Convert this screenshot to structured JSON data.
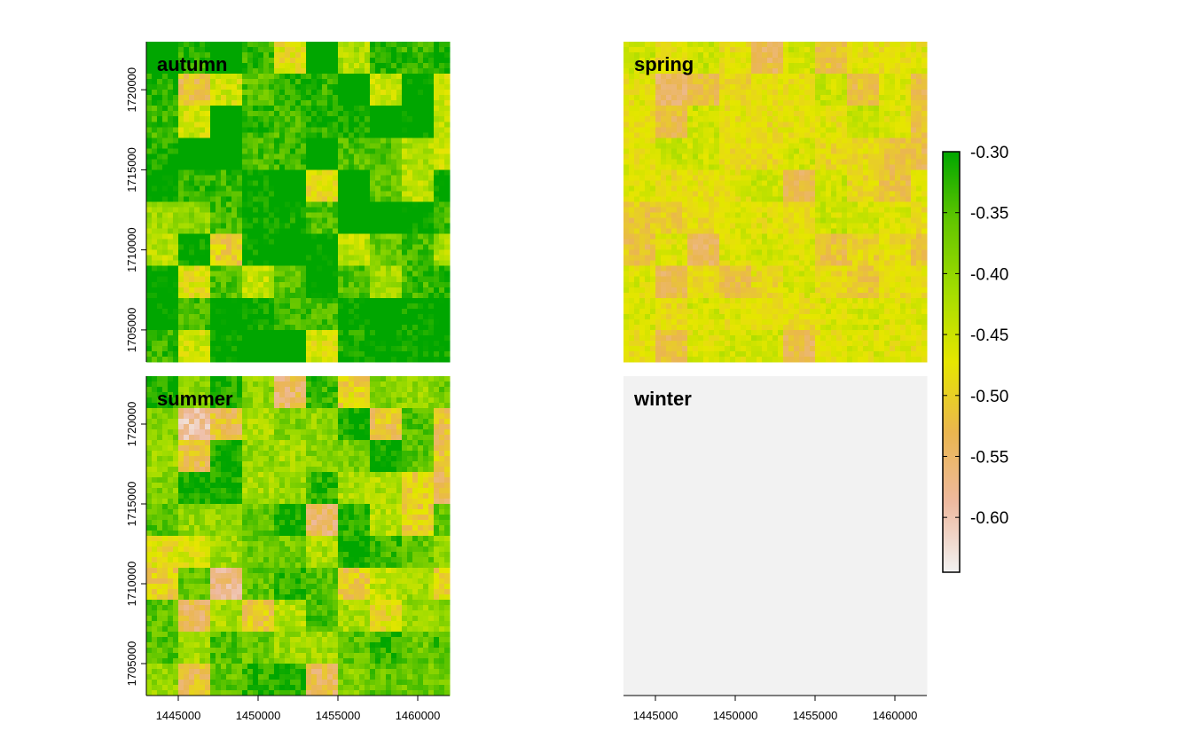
{
  "panels": [
    {
      "title": "autumn",
      "shift": 0.1,
      "show_y_axis": true,
      "show_x_axis": false
    },
    {
      "title": "spring",
      "shift": -0.2,
      "show_y_axis": false,
      "show_x_axis": false
    },
    {
      "title": "summer",
      "shift": 0.03,
      "show_y_axis": true,
      "show_x_axis": true
    },
    {
      "title": "winter",
      "shift": -0.55,
      "show_y_axis": false,
      "show_x_axis": true
    }
  ],
  "x_ticks": [
    1445000,
    1450000,
    1455000,
    1460000
  ],
  "x_tick_labels": [
    "1445000",
    "1450000",
    "1455000",
    "1460000"
  ],
  "x_range": [
    1443000,
    1462000
  ],
  "y_ticks": [
    1705000,
    1710000,
    1715000,
    1720000
  ],
  "y_tick_labels": [
    "1705000",
    "1710000",
    "1715000",
    "1720000"
  ],
  "y_range": [
    1703000,
    1723000
  ],
  "legend": {
    "breaks": [
      -0.3,
      -0.35,
      -0.4,
      -0.45,
      -0.5,
      -0.55,
      -0.6
    ],
    "labels": [
      "-0.30",
      "-0.35",
      "-0.40",
      "-0.45",
      "-0.50",
      "-0.55",
      "-0.60"
    ],
    "range": [
      -0.645,
      -0.3
    ],
    "colors": [
      "#f2f2f2",
      "#eeb99f",
      "#eab64e",
      "#e6e600",
      "#a4dd00",
      "#63c600",
      "#00a600"
    ]
  },
  "chart_data": {
    "type": "heatmap",
    "title": "",
    "xlabel": "",
    "ylabel": "",
    "facets": [
      "autumn",
      "spring",
      "summer",
      "winter"
    ],
    "xlim": [
      1443000,
      1462000
    ],
    "ylim": [
      1703000,
      1723000
    ],
    "color_scale": {
      "min": -0.645,
      "max": -0.3,
      "palette": "terrain"
    }
  }
}
